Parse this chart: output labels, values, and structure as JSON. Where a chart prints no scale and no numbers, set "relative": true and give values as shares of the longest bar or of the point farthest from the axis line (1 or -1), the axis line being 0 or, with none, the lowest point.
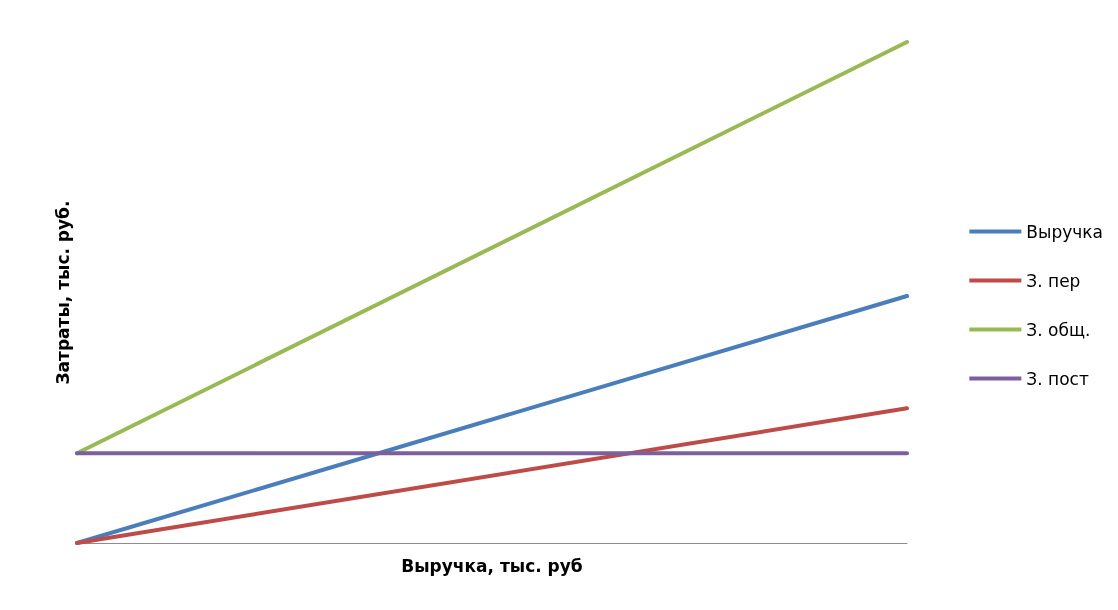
{
  "chart_data": {
    "type": "line",
    "relative": true,
    "xlabel": "Выручка, тыс. руб",
    "ylabel": "Затраты, тыс. руб.",
    "categories": [
      null,
      null
    ],
    "series": [
      {
        "name": "Выручка",
        "color": "#4a7ebb",
        "values": [
          0,
          0.493
        ]
      },
      {
        "name": "З. пер",
        "color": "#be4b48",
        "values": [
          0,
          0.269
        ]
      },
      {
        "name": "З. общ.",
        "color": "#98b954",
        "values": [
          0.179,
          1
        ]
      },
      {
        "name": "З. пост",
        "color": "#7d5fa0",
        "values": [
          0.179,
          0.179
        ]
      }
    ],
    "legend": "right",
    "marker": "none",
    "line_style": "solid"
  }
}
